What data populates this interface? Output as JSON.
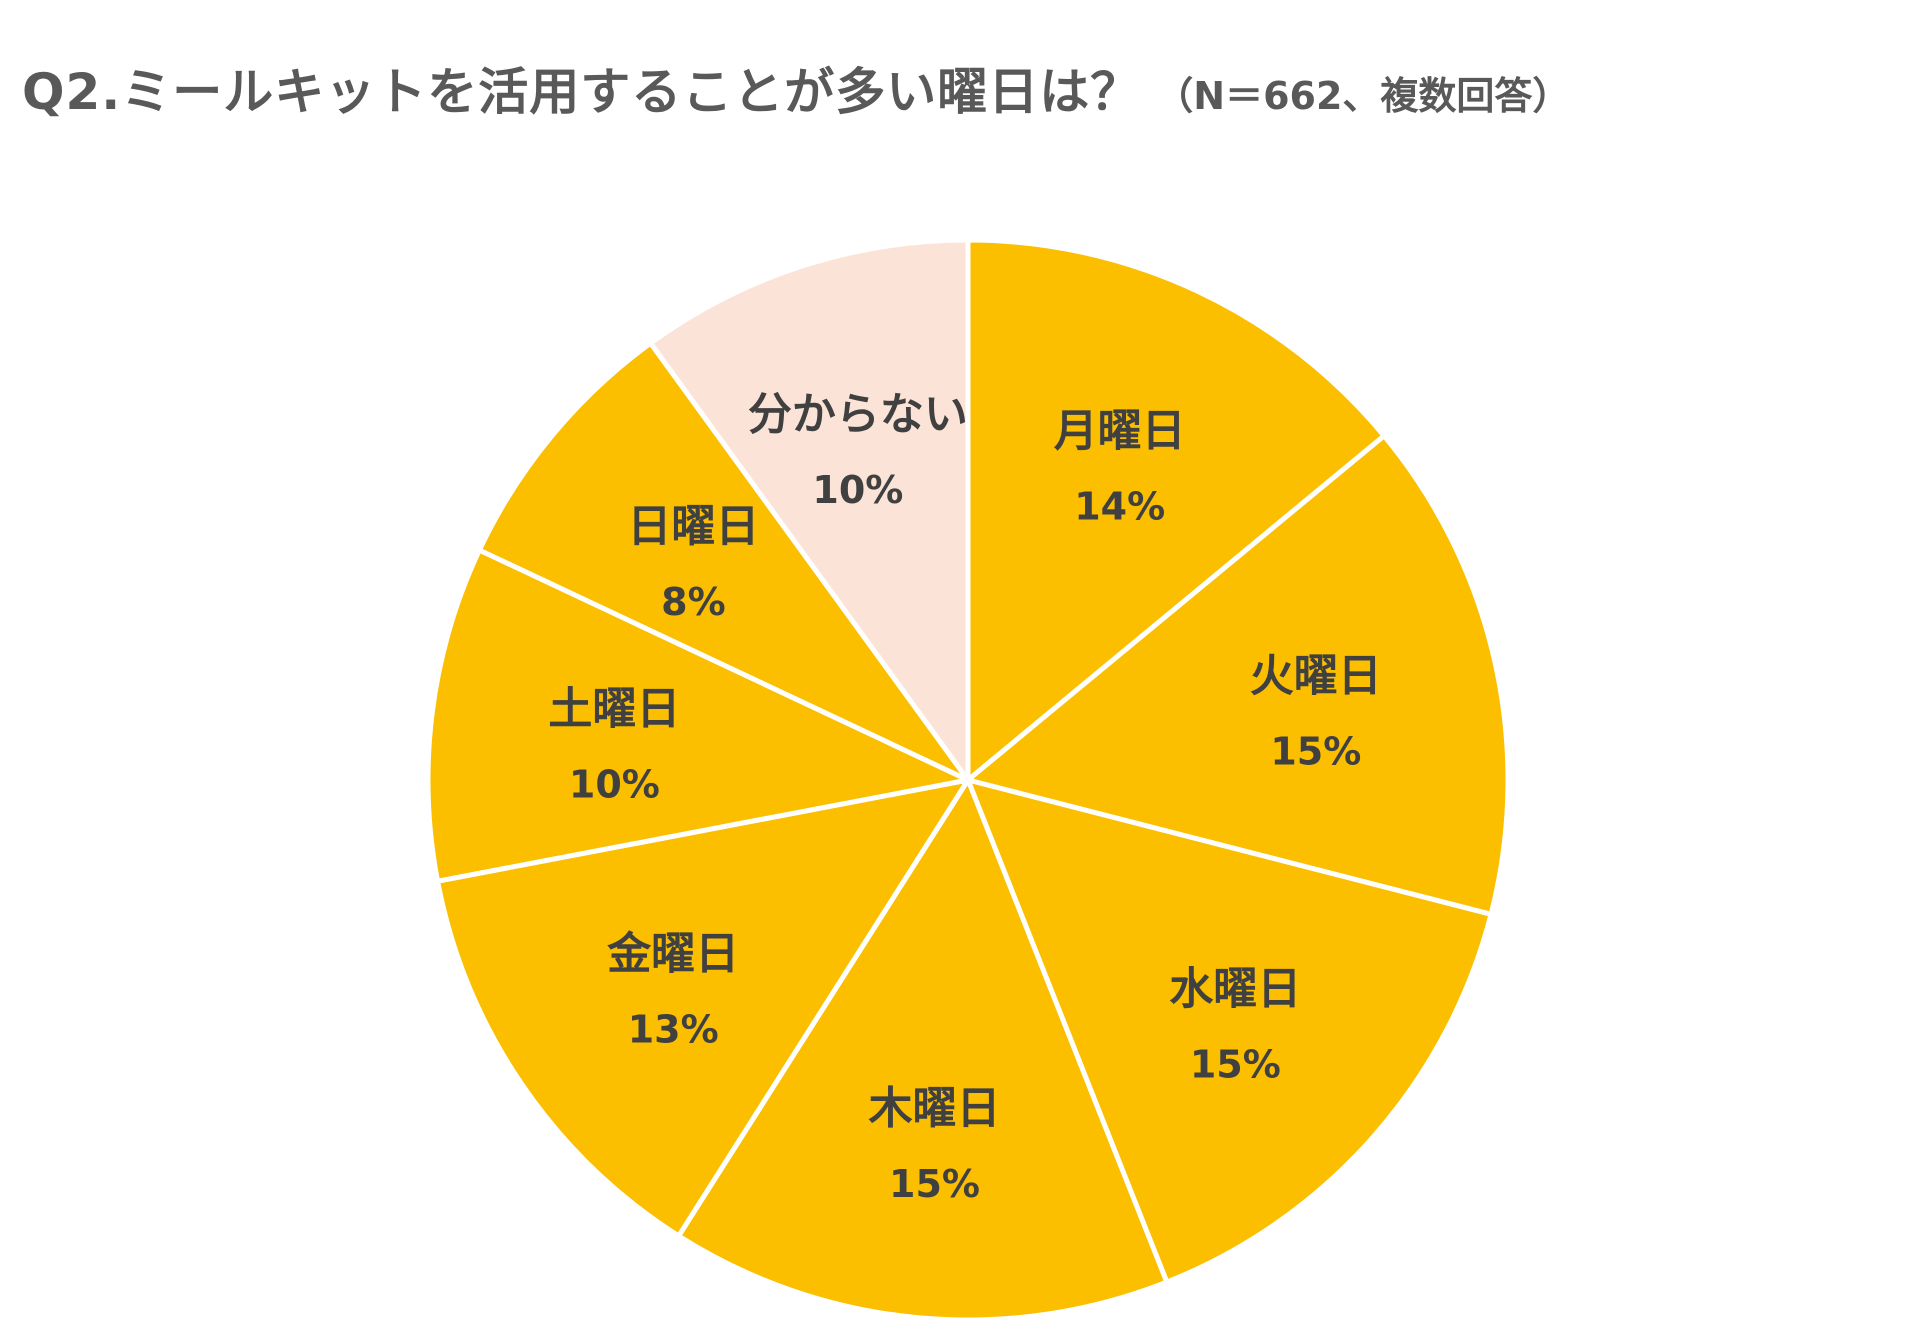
{
  "title": "Q2.ミールキットを活用することが多い曜日は？",
  "subtitle": "（N＝662、複数回答）",
  "chart_data": {
    "type": "pie",
    "start_angle_deg": 0,
    "direction": "clockwise",
    "slices": [
      {
        "label": "月曜日",
        "value": 14,
        "display": "14%",
        "color": "#FBBF00"
      },
      {
        "label": "火曜日",
        "value": 15,
        "display": "15%",
        "color": "#FBBF00"
      },
      {
        "label": "水曜日",
        "value": 15,
        "display": "15%",
        "color": "#FBBF00"
      },
      {
        "label": "木曜日",
        "value": 15,
        "display": "15%",
        "color": "#FBBF00"
      },
      {
        "label": "金曜日",
        "value": 13,
        "display": "13%",
        "color": "#FBBF00"
      },
      {
        "label": "土曜日",
        "value": 10,
        "display": "10%",
        "color": "#FBBF00"
      },
      {
        "label": "日曜日",
        "value": 8,
        "display": "8%",
        "color": "#FBBF00"
      },
      {
        "label": "分からない",
        "value": 10,
        "display": "10%",
        "color": "#FBE3D8"
      }
    ],
    "label_color": "#404040",
    "divider_color": "#FFFFFF"
  }
}
